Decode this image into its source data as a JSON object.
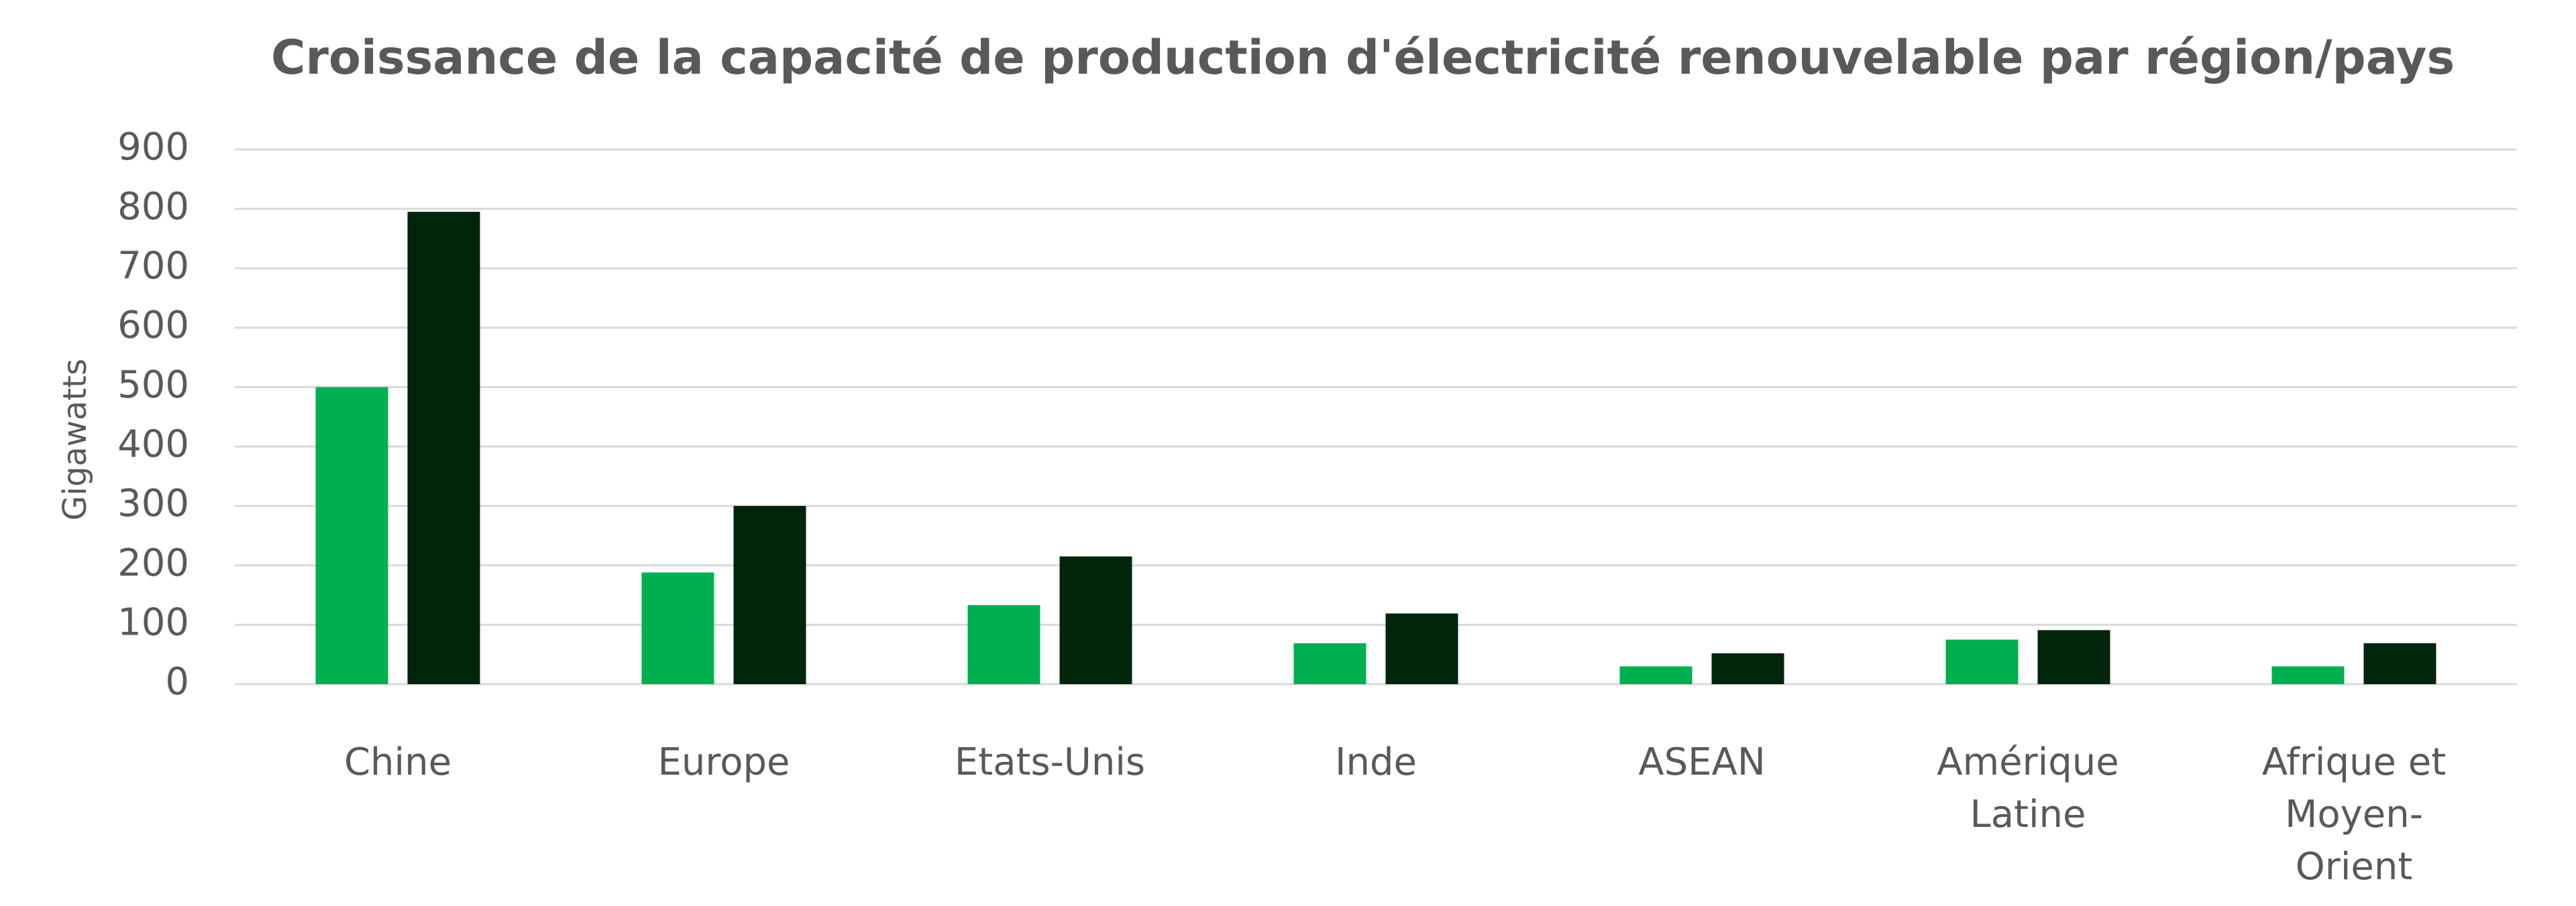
{
  "chart_data": {
    "type": "bar",
    "title": "Croissance de la capacité de production d'électricité renouvelable par région/pays",
    "y_label": "Gigawatts",
    "categories": [
      "Chine",
      "Europe",
      "Etats-Unis",
      "Inde",
      "ASEAN",
      "Amérique Latine",
      "Afrique et Moyen-Orient"
    ],
    "series": [
      {
        "color": "#00b050",
        "values": [
          500,
          188,
          133,
          69,
          30,
          75,
          30
        ]
      },
      {
        "color": "#00250a",
        "values": [
          795,
          300,
          215,
          119,
          52,
          91,
          69
        ]
      }
    ],
    "ylim": [
      0,
      900
    ],
    "yticks": [
      0,
      100,
      200,
      300,
      400,
      500,
      600,
      700,
      800,
      900
    ],
    "grid": true
  }
}
